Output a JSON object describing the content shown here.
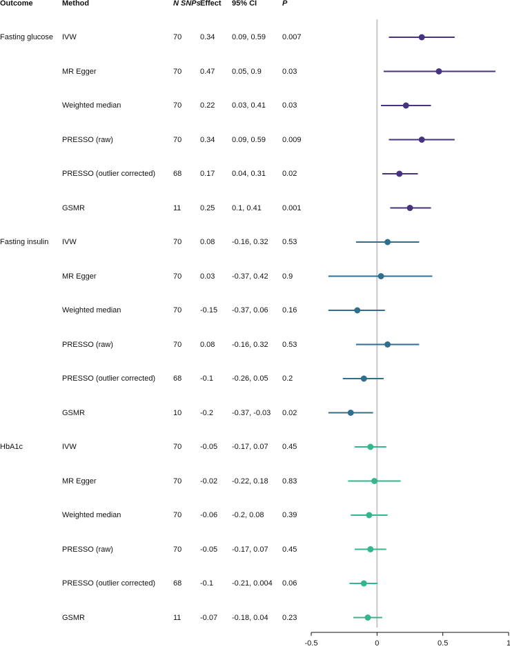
{
  "headers": {
    "outcome": "Outcome",
    "method": "Method",
    "nsnps": "N SNPs",
    "effect": "Effect",
    "ci": "95% CI",
    "p": "P"
  },
  "outcomes": [
    "Fasting glucose",
    "Fasting insulin",
    "HbA1c"
  ],
  "colors": {
    "Fasting glucose": "#46327e",
    "Fasting insulin": "#2f6f8e",
    "HbA1c": "#35b58e",
    "zero_line": "#c8c8c8",
    "axis": "#111111"
  },
  "rows": [
    {
      "outcome_label": "Fasting glucose",
      "outcome": "Fasting glucose",
      "method": "IVW",
      "n": "70",
      "effect_text": "0.34",
      "ci_text": "0.09, 0.59",
      "p": "0.007"
    },
    {
      "outcome_label": "",
      "outcome": "Fasting glucose",
      "method": "MR Egger",
      "n": "70",
      "effect_text": "0.47",
      "ci_text": "0.05, 0.9",
      "p": "0.03"
    },
    {
      "outcome_label": "",
      "outcome": "Fasting glucose",
      "method": "Weighted median",
      "n": "70",
      "effect_text": "0.22",
      "ci_text": "0.03, 0.41",
      "p": "0.03"
    },
    {
      "outcome_label": "",
      "outcome": "Fasting glucose",
      "method": "PRESSO (raw)",
      "n": "70",
      "effect_text": "0.34",
      "ci_text": "0.09, 0.59",
      "p": "0.009"
    },
    {
      "outcome_label": "",
      "outcome": "Fasting glucose",
      "method": "PRESSO (outlier corrected)",
      "n": "68",
      "effect_text": "0.17",
      "ci_text": "0.04, 0.31",
      "p": "0.02"
    },
    {
      "outcome_label": "",
      "outcome": "Fasting glucose",
      "method": "GSMR",
      "n": "11",
      "effect_text": "0.25",
      "ci_text": "0.1, 0.41",
      "p": "0.001"
    },
    {
      "outcome_label": "Fasting insulin",
      "outcome": "Fasting insulin",
      "method": "IVW",
      "n": "70",
      "effect_text": "0.08",
      "ci_text": "-0.16, 0.32",
      "p": "0.53"
    },
    {
      "outcome_label": "",
      "outcome": "Fasting insulin",
      "method": "MR Egger",
      "n": "70",
      "effect_text": "0.03",
      "ci_text": "-0.37, 0.42",
      "p": "0.9"
    },
    {
      "outcome_label": "",
      "outcome": "Fasting insulin",
      "method": "Weighted median",
      "n": "70",
      "effect_text": "-0.15",
      "ci_text": "-0.37, 0.06",
      "p": "0.16"
    },
    {
      "outcome_label": "",
      "outcome": "Fasting insulin",
      "method": "PRESSO (raw)",
      "n": "70",
      "effect_text": "0.08",
      "ci_text": "-0.16, 0.32",
      "p": "0.53"
    },
    {
      "outcome_label": "",
      "outcome": "Fasting insulin",
      "method": "PRESSO (outlier corrected)",
      "n": "68",
      "effect_text": "-0.1",
      "ci_text": "-0.26, 0.05",
      "p": "0.2"
    },
    {
      "outcome_label": "",
      "outcome": "Fasting insulin",
      "method": "GSMR",
      "n": "10",
      "effect_text": "-0.2",
      "ci_text": "-0.37, -0.03",
      "p": "0.02"
    },
    {
      "outcome_label": "HbA1c",
      "outcome": "HbA1c",
      "method": "IVW",
      "n": "70",
      "effect_text": "-0.05",
      "ci_text": "-0.17, 0.07",
      "p": "0.45"
    },
    {
      "outcome_label": "",
      "outcome": "HbA1c",
      "method": "MR Egger",
      "n": "70",
      "effect_text": "-0.02",
      "ci_text": "-0.22, 0.18",
      "p": "0.83"
    },
    {
      "outcome_label": "",
      "outcome": "HbA1c",
      "method": "Weighted median",
      "n": "70",
      "effect_text": "-0.06",
      "ci_text": "-0.2, 0.08",
      "p": "0.39"
    },
    {
      "outcome_label": "",
      "outcome": "HbA1c",
      "method": "PRESSO (raw)",
      "n": "70",
      "effect_text": "-0.05",
      "ci_text": "-0.17, 0.07",
      "p": "0.45"
    },
    {
      "outcome_label": "",
      "outcome": "HbA1c",
      "method": "PRESSO (outlier corrected)",
      "n": "68",
      "effect_text": "-0.1",
      "ci_text": "-0.21, 0.004",
      "p": "0.06"
    },
    {
      "outcome_label": "",
      "outcome": "HbA1c",
      "method": "GSMR",
      "n": "11",
      "effect_text": "-0.07",
      "ci_text": "-0.18, 0.04",
      "p": "0.23"
    }
  ],
  "chart_data": {
    "type": "forest",
    "title": "",
    "xlabel": "",
    "ylabel": "",
    "xlim": [
      -0.5,
      1
    ],
    "xticks": [
      -0.5,
      0,
      0.5,
      1
    ],
    "xtick_labels": [
      "-0.5",
      "0",
      "0.5",
      "1"
    ],
    "reference_line": 0,
    "grid": false,
    "series": [
      {
        "name": "Fasting glucose",
        "points": [
          {
            "method": "IVW",
            "effect": 0.34,
            "lower": 0.09,
            "upper": 0.59
          },
          {
            "method": "MR Egger",
            "effect": 0.47,
            "lower": 0.05,
            "upper": 0.9
          },
          {
            "method": "Weighted median",
            "effect": 0.22,
            "lower": 0.03,
            "upper": 0.41
          },
          {
            "method": "PRESSO (raw)",
            "effect": 0.34,
            "lower": 0.09,
            "upper": 0.59
          },
          {
            "method": "PRESSO (outlier corrected)",
            "effect": 0.17,
            "lower": 0.04,
            "upper": 0.31
          },
          {
            "method": "GSMR",
            "effect": 0.25,
            "lower": 0.1,
            "upper": 0.41
          }
        ]
      },
      {
        "name": "Fasting insulin",
        "points": [
          {
            "method": "IVW",
            "effect": 0.08,
            "lower": -0.16,
            "upper": 0.32
          },
          {
            "method": "MR Egger",
            "effect": 0.03,
            "lower": -0.37,
            "upper": 0.42
          },
          {
            "method": "Weighted median",
            "effect": -0.15,
            "lower": -0.37,
            "upper": 0.06
          },
          {
            "method": "PRESSO (raw)",
            "effect": 0.08,
            "lower": -0.16,
            "upper": 0.32
          },
          {
            "method": "PRESSO (outlier corrected)",
            "effect": -0.1,
            "lower": -0.26,
            "upper": 0.05
          },
          {
            "method": "GSMR",
            "effect": -0.2,
            "lower": -0.37,
            "upper": -0.03
          }
        ]
      },
      {
        "name": "HbA1c",
        "points": [
          {
            "method": "IVW",
            "effect": -0.05,
            "lower": -0.17,
            "upper": 0.07
          },
          {
            "method": "MR Egger",
            "effect": -0.02,
            "lower": -0.22,
            "upper": 0.18
          },
          {
            "method": "Weighted median",
            "effect": -0.06,
            "lower": -0.2,
            "upper": 0.08
          },
          {
            "method": "PRESSO (raw)",
            "effect": -0.05,
            "lower": -0.17,
            "upper": 0.07
          },
          {
            "method": "PRESSO (outlier corrected)",
            "effect": -0.1,
            "lower": -0.21,
            "upper": 0.004
          },
          {
            "method": "GSMR",
            "effect": -0.07,
            "lower": -0.18,
            "upper": 0.04
          }
        ]
      }
    ]
  }
}
